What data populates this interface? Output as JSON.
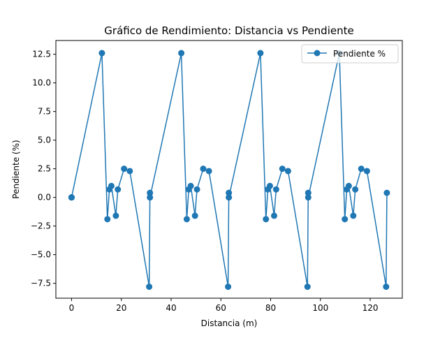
{
  "chart_data": {
    "type": "line",
    "title": "Gráfico de Rendimiento: Distancia vs Pendiente",
    "xlabel": "Distancia (m)",
    "ylabel": "Pendiente (%)",
    "xlim": [
      -6.3,
      132.9
    ],
    "ylim": [
      -8.8,
      13.7
    ],
    "x_ticks": [
      0,
      20,
      40,
      60,
      80,
      100,
      120
    ],
    "x_tick_labels": [
      "0",
      "20",
      "40",
      "60",
      "80",
      "100",
      "120"
    ],
    "y_ticks": [
      -7.5,
      -5.0,
      -2.5,
      0.0,
      2.5,
      5.0,
      7.5,
      10.0,
      12.5
    ],
    "y_tick_labels": [
      "−7.5",
      "−5.0",
      "−2.5",
      "0.0",
      "2.5",
      "5.0",
      "7.5",
      "10.0",
      "12.5"
    ],
    "grid": false,
    "legend_position": "top-right",
    "series": [
      {
        "name": "Pendiente %",
        "color": "#1f77b4",
        "marker": "circle",
        "x": [
          0,
          0,
          0,
          0,
          12.2,
          14.4,
          15.2,
          16.0,
          17.8,
          18.6,
          21.1,
          23.4,
          31.2,
          31.5,
          31.5,
          44.1,
          46.3,
          47.1,
          47.9,
          49.6,
          50.4,
          52.9,
          55.2,
          62.9,
          63.2,
          63.2,
          75.9,
          78.1,
          78.9,
          79.7,
          81.4,
          82.2,
          84.7,
          87.0,
          94.8,
          95.1,
          95.1,
          107.6,
          109.8,
          110.6,
          111.4,
          113.2,
          114.0,
          116.4,
          118.7,
          126.4,
          126.7
        ],
        "y": [
          0,
          0,
          0,
          0,
          12.6,
          -1.9,
          0.7,
          1.0,
          -1.6,
          0.7,
          2.5,
          2.3,
          -7.8,
          0.4,
          0.0,
          12.6,
          -1.9,
          0.7,
          1.0,
          -1.6,
          0.7,
          2.5,
          2.3,
          -7.8,
          0.4,
          0.0,
          12.6,
          -1.9,
          0.7,
          1.0,
          -1.6,
          0.7,
          2.5,
          2.3,
          -7.8,
          0.4,
          0.0,
          12.6,
          -1.9,
          0.7,
          1.0,
          -1.6,
          0.7,
          2.5,
          2.3,
          -7.8,
          0.4
        ]
      }
    ]
  }
}
